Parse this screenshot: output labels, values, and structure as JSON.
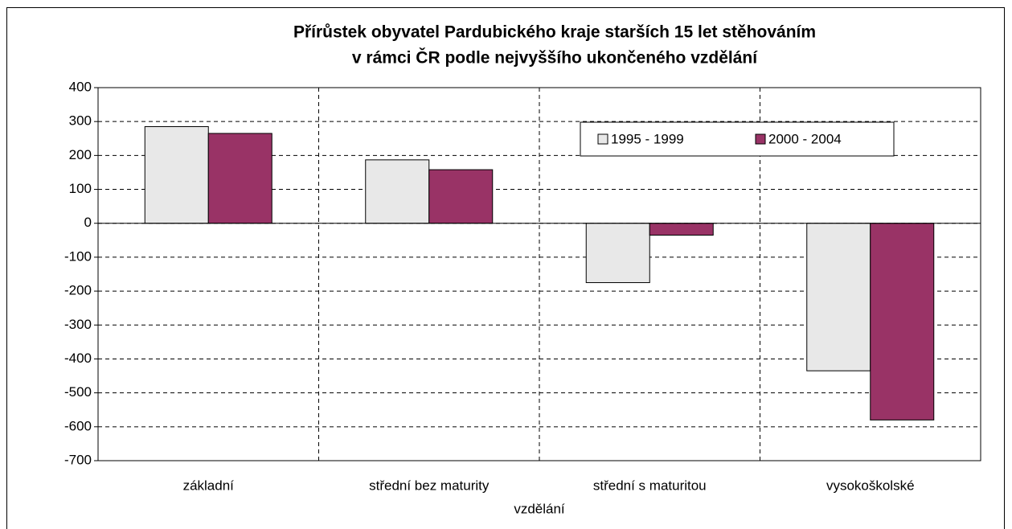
{
  "chart_data": {
    "type": "bar",
    "title": [
      "Přírůstek obyvatel Pardubického kraje starších 15 let stěhováním",
      "v rámci ČR podle nejvyššího ukončeného vzdělání"
    ],
    "x_label": "vzdělání",
    "categories": [
      "základní",
      "střední bez maturity",
      "střední s maturitou",
      "vysokoškolské"
    ],
    "series": [
      {
        "name": "1995 - 1999",
        "color": "#e8e8e8",
        "values": [
          285,
          187,
          -175,
          -435
        ]
      },
      {
        "name": "2000 - 2004",
        "color": "#993366",
        "values": [
          265,
          158,
          -35,
          -580
        ]
      }
    ],
    "ylim": [
      -700,
      400
    ],
    "yticks": [
      -700,
      -600,
      -500,
      -400,
      -300,
      -200,
      -100,
      0,
      100,
      200,
      300,
      400
    ],
    "grid": true,
    "legend": "upper right"
  }
}
